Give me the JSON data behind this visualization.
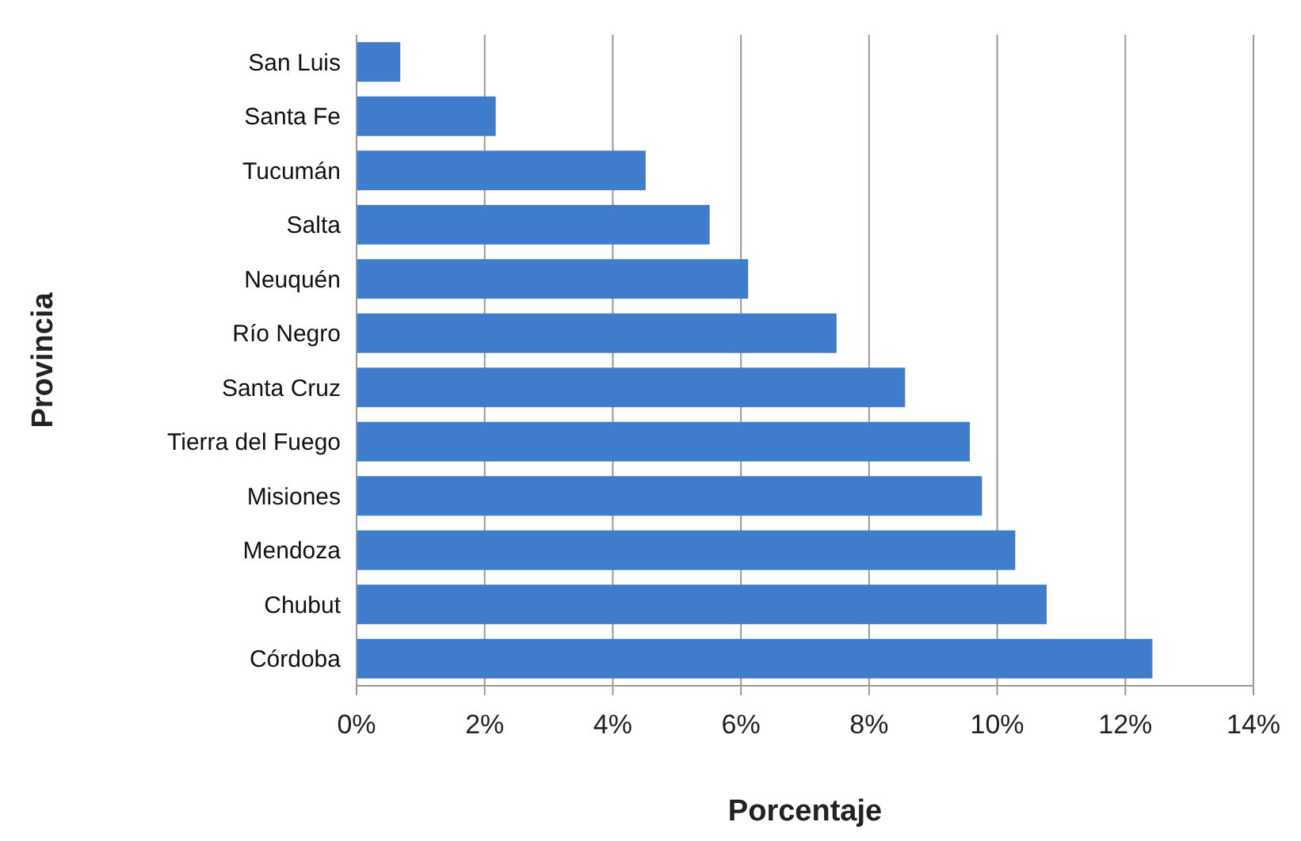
{
  "chart_data": {
    "type": "bar",
    "orientation": "horizontal",
    "xlabel": "Porcentaje",
    "ylabel": "Provincia",
    "categories": [
      "San Luis",
      "Santa Fe",
      "Tucumán",
      "Salta",
      "Neuquén",
      "Río Negro",
      "Santa Cruz",
      "Tierra del Fuego",
      "Misiones",
      "Mendoza",
      "Chubut",
      "Córdoba"
    ],
    "values": [
      0.67,
      2.16,
      4.5,
      5.5,
      6.1,
      7.48,
      8.55,
      9.56,
      9.75,
      10.27,
      10.76,
      12.41
    ],
    "color": "#3f7ccc",
    "xlim": [
      0,
      14
    ],
    "xticks": [
      {
        "value": 0,
        "label": "0%"
      },
      {
        "value": 2,
        "label": "2%"
      },
      {
        "value": 4,
        "label": "4%"
      },
      {
        "value": 6,
        "label": "6%"
      },
      {
        "value": 8,
        "label": "8%"
      },
      {
        "value": 10,
        "label": "10%"
      },
      {
        "value": 12,
        "label": "12%"
      },
      {
        "value": 14,
        "label": "14%"
      }
    ],
    "grid": "x"
  }
}
